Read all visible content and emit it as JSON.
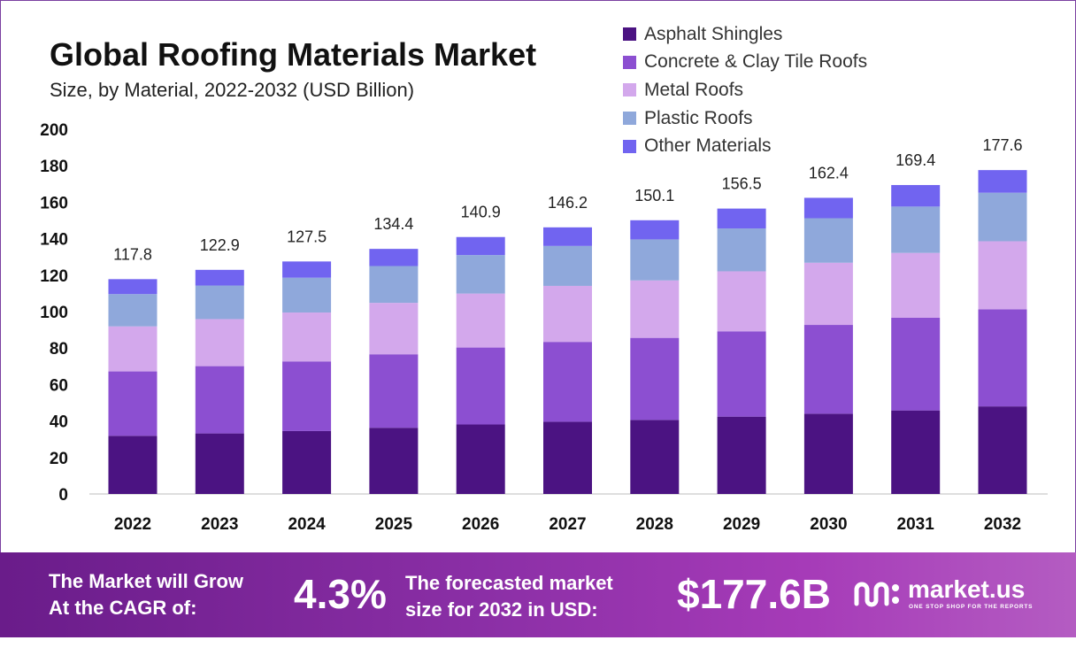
{
  "title": "Global Roofing Materials Market",
  "subtitle": "Size, by Material, 2022-2032 (USD Billion)",
  "colors": {
    "asphalt": "#4b1382",
    "concrete": "#8c4fd1",
    "metal": "#d3a8ec",
    "plastic": "#8fa8db",
    "other": "#7164f0",
    "frame": "#7b3fa0"
  },
  "chart_data": {
    "type": "bar",
    "stacked": true,
    "categories": [
      "2022",
      "2023",
      "2024",
      "2025",
      "2026",
      "2027",
      "2028",
      "2029",
      "2030",
      "2031",
      "2032"
    ],
    "series": [
      {
        "name": "Asphalt Shingles",
        "color": "#4b1382",
        "values": [
          31.9,
          33.2,
          34.5,
          36.3,
          38.1,
          39.6,
          40.6,
          42.4,
          44.0,
          45.8,
          48.0
        ]
      },
      {
        "name": "Concrete & Clay Tile Roofs",
        "color": "#8c4fd1",
        "values": [
          35.3,
          36.9,
          38.2,
          40.3,
          42.2,
          43.8,
          45.0,
          46.8,
          48.7,
          50.8,
          53.3
        ]
      },
      {
        "name": "Metal Roofs",
        "color": "#d3a8ec",
        "values": [
          24.7,
          25.8,
          26.8,
          28.2,
          29.6,
          30.7,
          31.5,
          32.9,
          34.1,
          35.6,
          37.3
        ]
      },
      {
        "name": "Plastic Roofs",
        "color": "#8fa8db",
        "values": [
          17.7,
          18.4,
          19.1,
          20.2,
          21.1,
          21.9,
          22.5,
          23.5,
          24.4,
          25.4,
          26.6
        ]
      },
      {
        "name": "Other Materials",
        "color": "#7164f0",
        "values": [
          8.2,
          8.6,
          8.9,
          9.4,
          9.9,
          10.2,
          10.5,
          10.9,
          11.2,
          11.8,
          12.4
        ]
      }
    ],
    "totals": [
      "117.8",
      "122.9",
      "127.5",
      "134.4",
      "140.9",
      "146.2",
      "150.1",
      "156.5",
      "162.4",
      "169.4",
      "177.6"
    ],
    "yticks": [
      "0",
      "20",
      "40",
      "60",
      "80",
      "100",
      "120",
      "140",
      "160",
      "180",
      "200"
    ],
    "ylim": [
      0,
      200
    ],
    "title": "Global Roofing Materials Market",
    "subtitle": "Size, by Material, 2022-2032 (USD Billion)",
    "xlabel": "",
    "ylabel": "",
    "grid": false,
    "legend_position": "top-right"
  },
  "footer": {
    "cagr_line1": "The Market will Grow",
    "cagr_line2": "At the CAGR of:",
    "cagr_value": "4.3%",
    "forecast_line1": "The forecasted market",
    "forecast_line2": "size for 2032 in USD:",
    "forecast_value": "$177.6B",
    "brand_name": "market.us",
    "brand_tagline": "ONE STOP SHOP FOR THE REPORTS"
  }
}
